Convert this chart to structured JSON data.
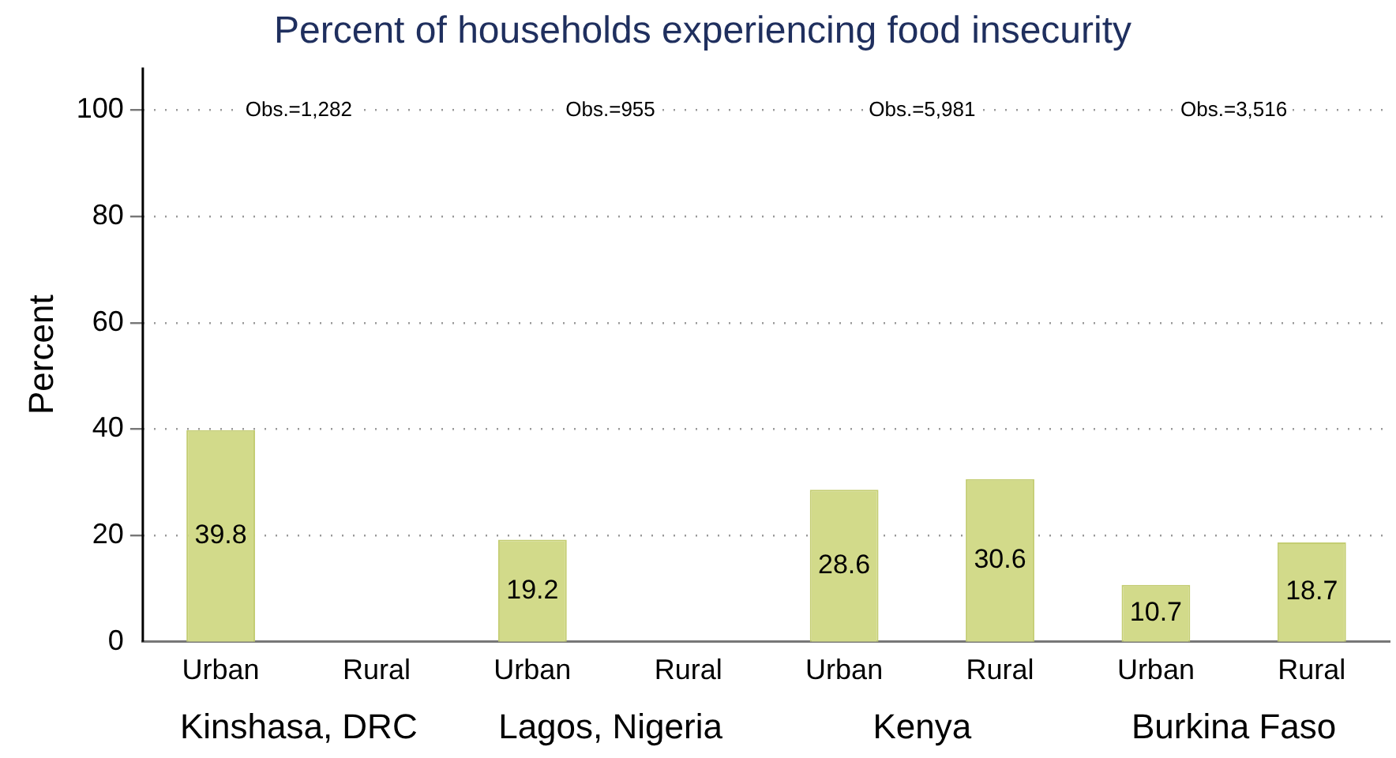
{
  "chart_data": {
    "type": "bar",
    "title": "Percent of households experiencing food insecurity",
    "ylabel": "Percent",
    "categories": [
      "Urban",
      "Rural",
      "Urban",
      "Rural",
      "Urban",
      "Rural",
      "Urban",
      "Rural"
    ],
    "values": [
      39.8,
      null,
      19.2,
      null,
      28.6,
      30.6,
      10.7,
      18.7
    ],
    "color": "#d2da8a",
    "ylim": [
      0,
      108
    ],
    "yticks": [
      0,
      20,
      40,
      60,
      80,
      100
    ],
    "grid": "y",
    "data_labels": true,
    "annotations": [
      "Obs.=1,282",
      "Obs.=955",
      "Obs.=5,981",
      "Obs.=3,516",
      "Kinshasa, DRC",
      "Lagos, Nigeria",
      "Kenya",
      "Burkina Faso"
    ]
  }
}
